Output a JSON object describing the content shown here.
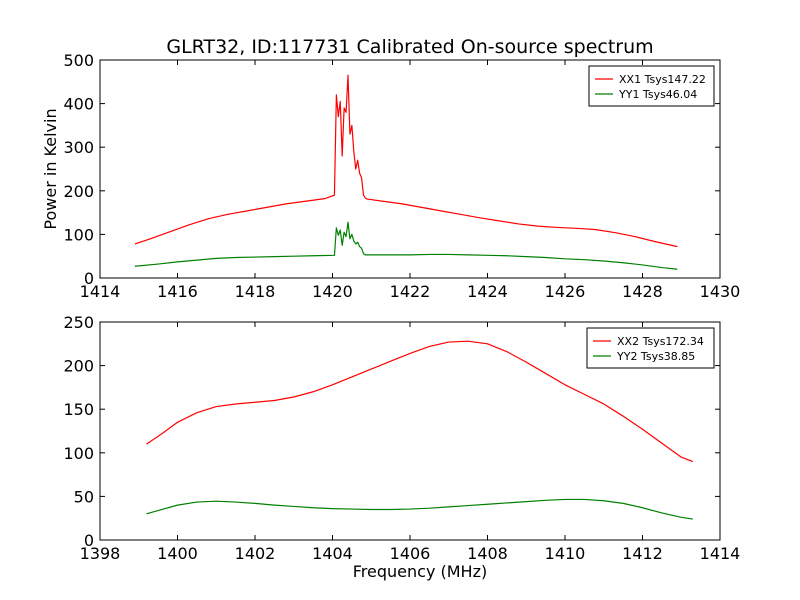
{
  "title": "GLRT32, ID:117731 Calibrated On-source spectrum",
  "chart_data": [
    {
      "type": "line",
      "ylabel": "Power in Kelvin",
      "xlabel": "",
      "xlim": [
        1414,
        1430
      ],
      "ylim": [
        0,
        500
      ],
      "xticks": [
        "1414",
        "1416",
        "1418",
        "1420",
        "1422",
        "1424",
        "1426",
        "1428",
        "1430"
      ],
      "yticks": [
        "0",
        "100",
        "200",
        "300",
        "400",
        "500"
      ],
      "legend_position": "top-right",
      "series": [
        {
          "name": "XX1 Tsys147.22",
          "color": "#ff0000",
          "x": [
            1414.9,
            1415.3,
            1415.8,
            1416.3,
            1416.8,
            1417.3,
            1417.8,
            1418.3,
            1418.8,
            1419.3,
            1419.8,
            1420.05,
            1420.1,
            1420.15,
            1420.2,
            1420.25,
            1420.3,
            1420.35,
            1420.4,
            1420.45,
            1420.5,
            1420.55,
            1420.6,
            1420.65,
            1420.7,
            1420.75,
            1420.8,
            1420.85,
            1420.9,
            1421.3,
            1421.8,
            1422.3,
            1422.8,
            1423.3,
            1423.8,
            1424.3,
            1424.8,
            1425.3,
            1425.8,
            1426.3,
            1426.8,
            1427.3,
            1427.8,
            1428.3,
            1428.9
          ],
          "y": [
            78,
            90,
            106,
            122,
            136,
            146,
            154,
            162,
            170,
            176,
            182,
            190,
            420,
            370,
            405,
            280,
            390,
            380,
            465,
            330,
            350,
            290,
            250,
            270,
            240,
            230,
            190,
            183,
            181,
            176,
            170,
            162,
            154,
            146,
            138,
            131,
            124,
            119,
            116,
            114,
            111,
            104,
            95,
            84,
            72
          ]
        },
        {
          "name": "YY1 Tsys46.04",
          "color": "#008000",
          "x": [
            1414.9,
            1415.5,
            1416.0,
            1416.5,
            1417.0,
            1417.5,
            1418.0,
            1418.5,
            1419.0,
            1419.5,
            1420.05,
            1420.1,
            1420.15,
            1420.2,
            1420.25,
            1420.3,
            1420.35,
            1420.4,
            1420.45,
            1420.5,
            1420.55,
            1420.6,
            1420.65,
            1420.7,
            1420.75,
            1420.8,
            1420.85,
            1420.9,
            1421.5,
            1422.0,
            1422.5,
            1423.0,
            1423.5,
            1424.0,
            1424.5,
            1425.0,
            1425.5,
            1426.0,
            1426.5,
            1427.0,
            1427.5,
            1428.0,
            1428.5,
            1428.9
          ],
          "y": [
            27,
            32,
            37,
            41,
            45,
            47,
            48,
            49,
            50,
            51,
            52,
            115,
            98,
            110,
            75,
            105,
            95,
            128,
            90,
            100,
            85,
            78,
            82,
            72,
            68,
            56,
            53,
            53,
            53,
            53,
            54,
            54,
            53,
            52,
            51,
            49,
            47,
            44,
            42,
            39,
            35,
            30,
            24,
            20
          ]
        }
      ]
    },
    {
      "type": "line",
      "xlabel": "Frequency (MHz)",
      "ylabel": "",
      "xlim": [
        1398,
        1414
      ],
      "ylim": [
        0,
        250
      ],
      "xticks": [
        "1398",
        "1400",
        "1402",
        "1404",
        "1406",
        "1408",
        "1410",
        "1412",
        "1414"
      ],
      "yticks": [
        "0",
        "50",
        "100",
        "150",
        "200",
        "250"
      ],
      "legend_position": "top-right",
      "series": [
        {
          "name": "XX2 Tsys172.34",
          "color": "#ff0000",
          "x": [
            1399.2,
            1399.6,
            1400.0,
            1400.5,
            1401.0,
            1401.5,
            1402.0,
            1402.5,
            1403.0,
            1403.5,
            1404.0,
            1404.5,
            1405.0,
            1405.5,
            1406.0,
            1406.5,
            1407.0,
            1407.5,
            1408.0,
            1408.5,
            1409.0,
            1409.5,
            1410.0,
            1410.5,
            1411.0,
            1411.5,
            1412.0,
            1412.5,
            1413.0,
            1413.3
          ],
          "y": [
            110,
            122,
            135,
            146,
            153,
            156,
            158,
            160,
            164,
            170,
            178,
            187,
            196,
            205,
            214,
            222,
            227,
            228,
            225,
            216,
            204,
            191,
            178,
            167,
            156,
            142,
            127,
            111,
            95,
            90
          ]
        },
        {
          "name": "YY2 Tsys38.85",
          "color": "#008000",
          "x": [
            1399.2,
            1399.6,
            1400.0,
            1400.5,
            1401.0,
            1401.5,
            1402.0,
            1402.5,
            1403.0,
            1403.5,
            1404.0,
            1404.5,
            1405.0,
            1405.5,
            1406.0,
            1406.5,
            1407.0,
            1407.5,
            1408.0,
            1408.5,
            1409.0,
            1409.5,
            1410.0,
            1410.5,
            1411.0,
            1411.5,
            1412.0,
            1412.5,
            1413.0,
            1413.3
          ],
          "y": [
            30,
            35,
            40,
            43.5,
            44.5,
            43.5,
            42,
            40,
            38.5,
            37,
            36,
            35.5,
            35,
            35,
            35.5,
            36.5,
            38,
            39.5,
            41,
            42.5,
            44,
            45.5,
            46.5,
            46.5,
            45,
            42,
            37,
            31,
            26,
            24
          ]
        }
      ]
    }
  ]
}
